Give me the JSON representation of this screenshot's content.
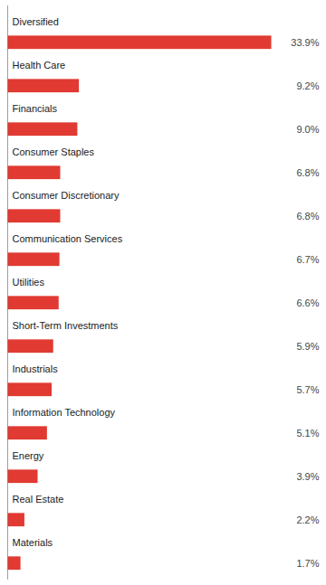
{
  "chart_data": {
    "type": "bar",
    "orientation": "horizontal",
    "categories": [
      "Diversified",
      "Health Care",
      "Financials",
      "Consumer Staples",
      "Consumer Discretionary",
      "Communication Services",
      "Utilities",
      "Short-Term Investments",
      "Industrials",
      "Information Technology",
      "Energy",
      "Real Estate",
      "Materials"
    ],
    "values": [
      33.9,
      9.2,
      9.0,
      6.8,
      6.8,
      6.7,
      6.6,
      5.9,
      5.7,
      5.1,
      3.9,
      2.2,
      1.7
    ],
    "value_labels": [
      "33.9%",
      "9.2%",
      "9.0%",
      "6.8%",
      "6.8%",
      "6.7%",
      "6.6%",
      "5.9%",
      "5.7%",
      "5.1%",
      "3.9%",
      "2.2%",
      "1.7%"
    ],
    "data_labels": true,
    "color": "#E03A32",
    "xlim": [
      0,
      40
    ],
    "tick_labels": false,
    "grid": false
  }
}
